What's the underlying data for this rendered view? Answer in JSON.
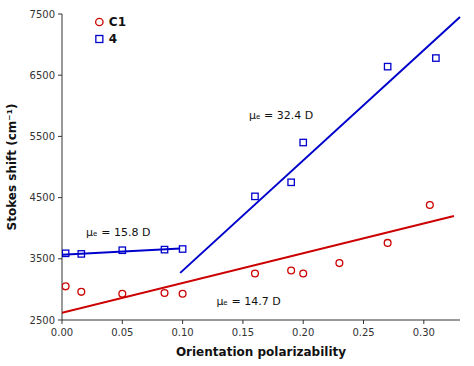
{
  "chart_data": {
    "type": "scatter",
    "xlabel": "Orientation polarizability",
    "ylabel": "Stokes shift (cm⁻¹)",
    "xlim": [
      0.0,
      0.33
    ],
    "ylim": [
      2500,
      7500
    ],
    "xticks": [
      {
        "value": 0.0,
        "label": "0.00"
      },
      0.05,
      {
        "value": 0.1,
        "label": "0.10"
      },
      0.15,
      {
        "value": 0.2,
        "label": "0.20"
      },
      0.25,
      {
        "value": 0.3,
        "label": "0.30"
      }
    ],
    "yticks": [
      2500,
      3500,
      4500,
      5500,
      6500,
      7500
    ],
    "grid": false,
    "legend": "upper left",
    "series": [
      {
        "type": "line",
        "color": "#cc0000",
        "line_style": "solid",
        "x": [
          0.0,
          0.325
        ],
        "values": [
          2620,
          4200
        ]
      },
      {
        "type": "line",
        "color": "#0000cc",
        "line_style": "solid",
        "x": [
          0.0,
          0.098
        ],
        "values": [
          3565,
          3670
        ]
      },
      {
        "type": "line",
        "color": "#0000cc",
        "line_style": "solid",
        "x": [
          0.098,
          0.33
        ],
        "values": [
          3270,
          7450
        ]
      },
      {
        "name": "C1",
        "type": "scatter",
        "marker": "circle",
        "color": "#cc0000",
        "x": [
          0.003,
          0.016,
          0.05,
          0.085,
          0.1,
          0.16,
          0.19,
          0.2,
          0.23,
          0.27,
          0.305
        ],
        "values": [
          3050,
          2960,
          2930,
          2940,
          2930,
          3260,
          3310,
          3260,
          3430,
          3760,
          4380
        ]
      },
      {
        "name": "4",
        "type": "scatter",
        "marker": "square",
        "color": "#0000cc",
        "x": [
          0.003,
          0.016,
          0.05,
          0.085,
          0.1,
          0.16,
          0.19,
          0.2,
          0.27,
          0.31
        ],
        "values": [
          3590,
          3580,
          3640,
          3650,
          3660,
          4520,
          4750,
          5400,
          6640,
          6780
        ]
      }
    ],
    "annotations": [
      {
        "text": "μₑ = 15.8 D",
        "x": 0.02,
        "y": 3880
      },
      {
        "text": "μₑ = 32.4 D",
        "x": 0.155,
        "y": 5780
      },
      {
        "text": "μₑ = 14.7 D",
        "x": 0.128,
        "y": 2750
      }
    ]
  }
}
